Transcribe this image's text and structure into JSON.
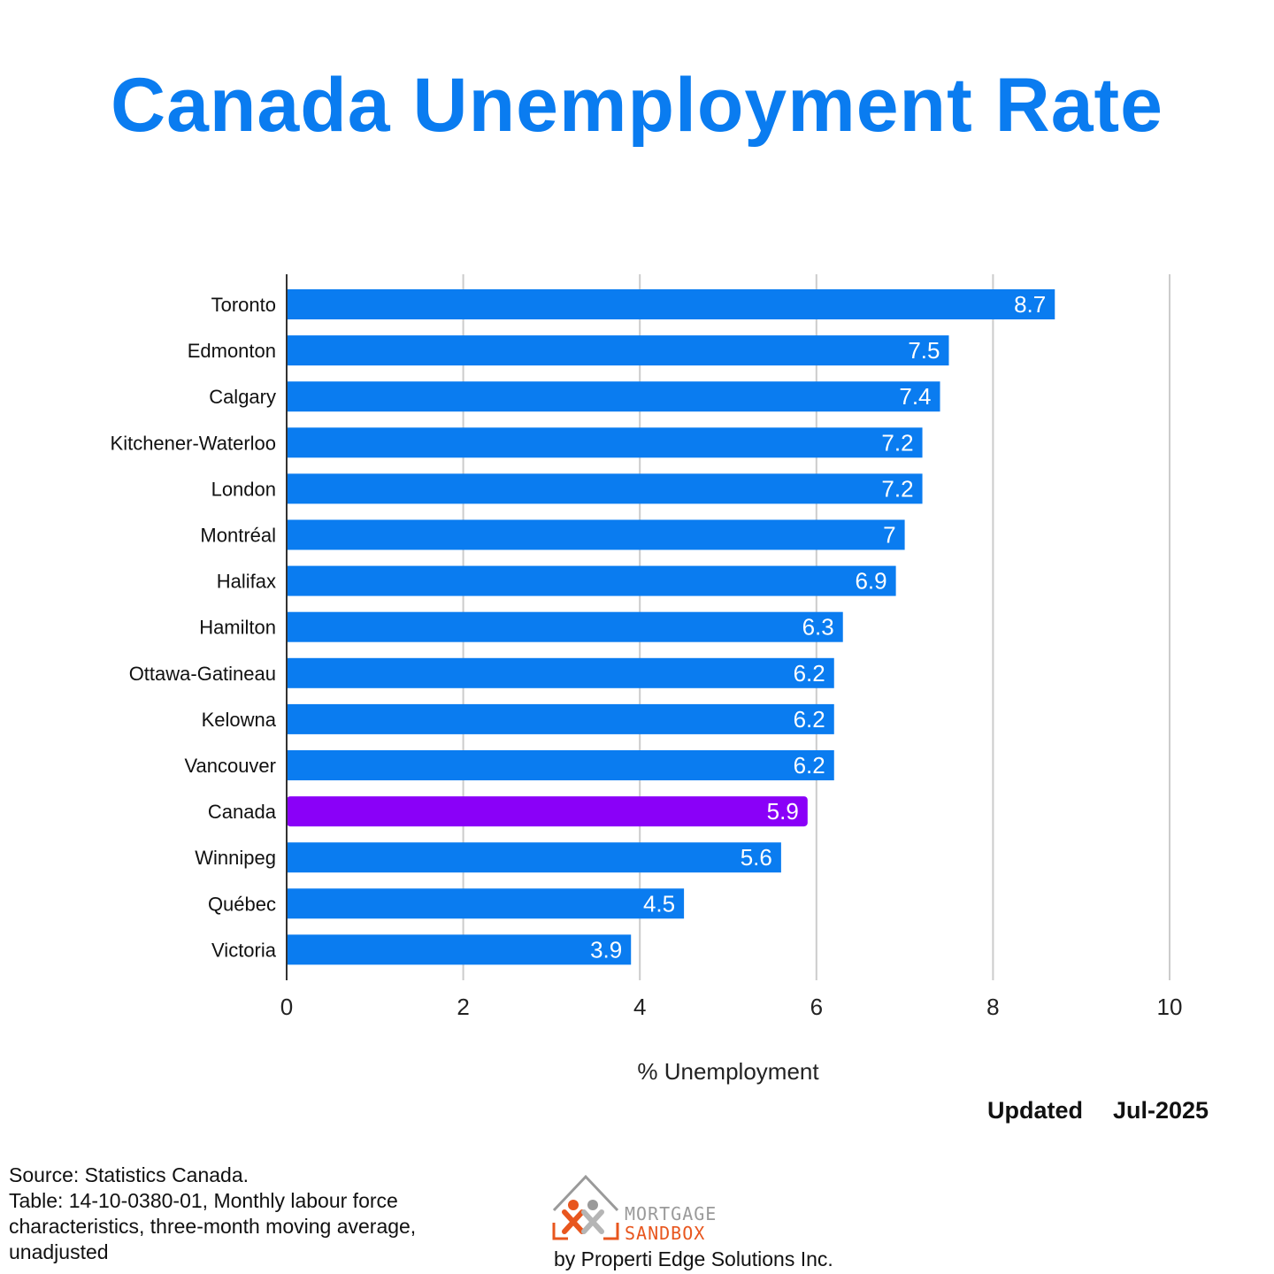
{
  "title": "Canada Unemployment Rate",
  "chart_data": {
    "type": "bar",
    "orientation": "horizontal",
    "categories": [
      "Toronto",
      "Edmonton",
      "Calgary",
      "Kitchener-Waterloo",
      "London",
      "Montréal",
      "Halifax",
      "Hamilton",
      "Ottawa-Gatineau",
      "Kelowna",
      "Vancouver",
      "Canada",
      "Winnipeg",
      "Québec",
      "Victoria"
    ],
    "values": [
      8.7,
      7.5,
      7.4,
      7.2,
      7.2,
      7,
      6.9,
      6.3,
      6.2,
      6.2,
      6.2,
      5.9,
      5.6,
      4.5,
      3.9
    ],
    "value_labels": [
      "8.7",
      "7.5",
      "7.4",
      "7.2",
      "7.2",
      "7",
      "6.9",
      "6.3",
      "6.2",
      "6.2",
      "6.2",
      "5.9",
      "5.6",
      "4.5",
      "3.9"
    ],
    "highlight": "Canada",
    "xlabel": "% Unemployment",
    "ylabel": "",
    "xlim": [
      0,
      10
    ],
    "xticks": [
      "0",
      "2",
      "4",
      "6",
      "8",
      "10"
    ],
    "grid": true,
    "colors": {
      "bar": "#0a7cf0",
      "highlight": "#8a00f8",
      "grid": "#cccccc",
      "axis": "#333333"
    }
  },
  "updated": {
    "label": "Updated",
    "date": "Jul-2025"
  },
  "source": {
    "lines": [
      "Source: Statistics Canada.",
      "Table: 14-10-0380-01, Monthly labour force",
      "characteristics, three-month moving average,",
      "unadjusted"
    ]
  },
  "logo": {
    "line1": "MORTGAGE",
    "line2": "SANDBOX",
    "byline": "by Properti Edge Solutions Inc.",
    "accent": "#e8561e",
    "grey": "#9a9a9a"
  }
}
